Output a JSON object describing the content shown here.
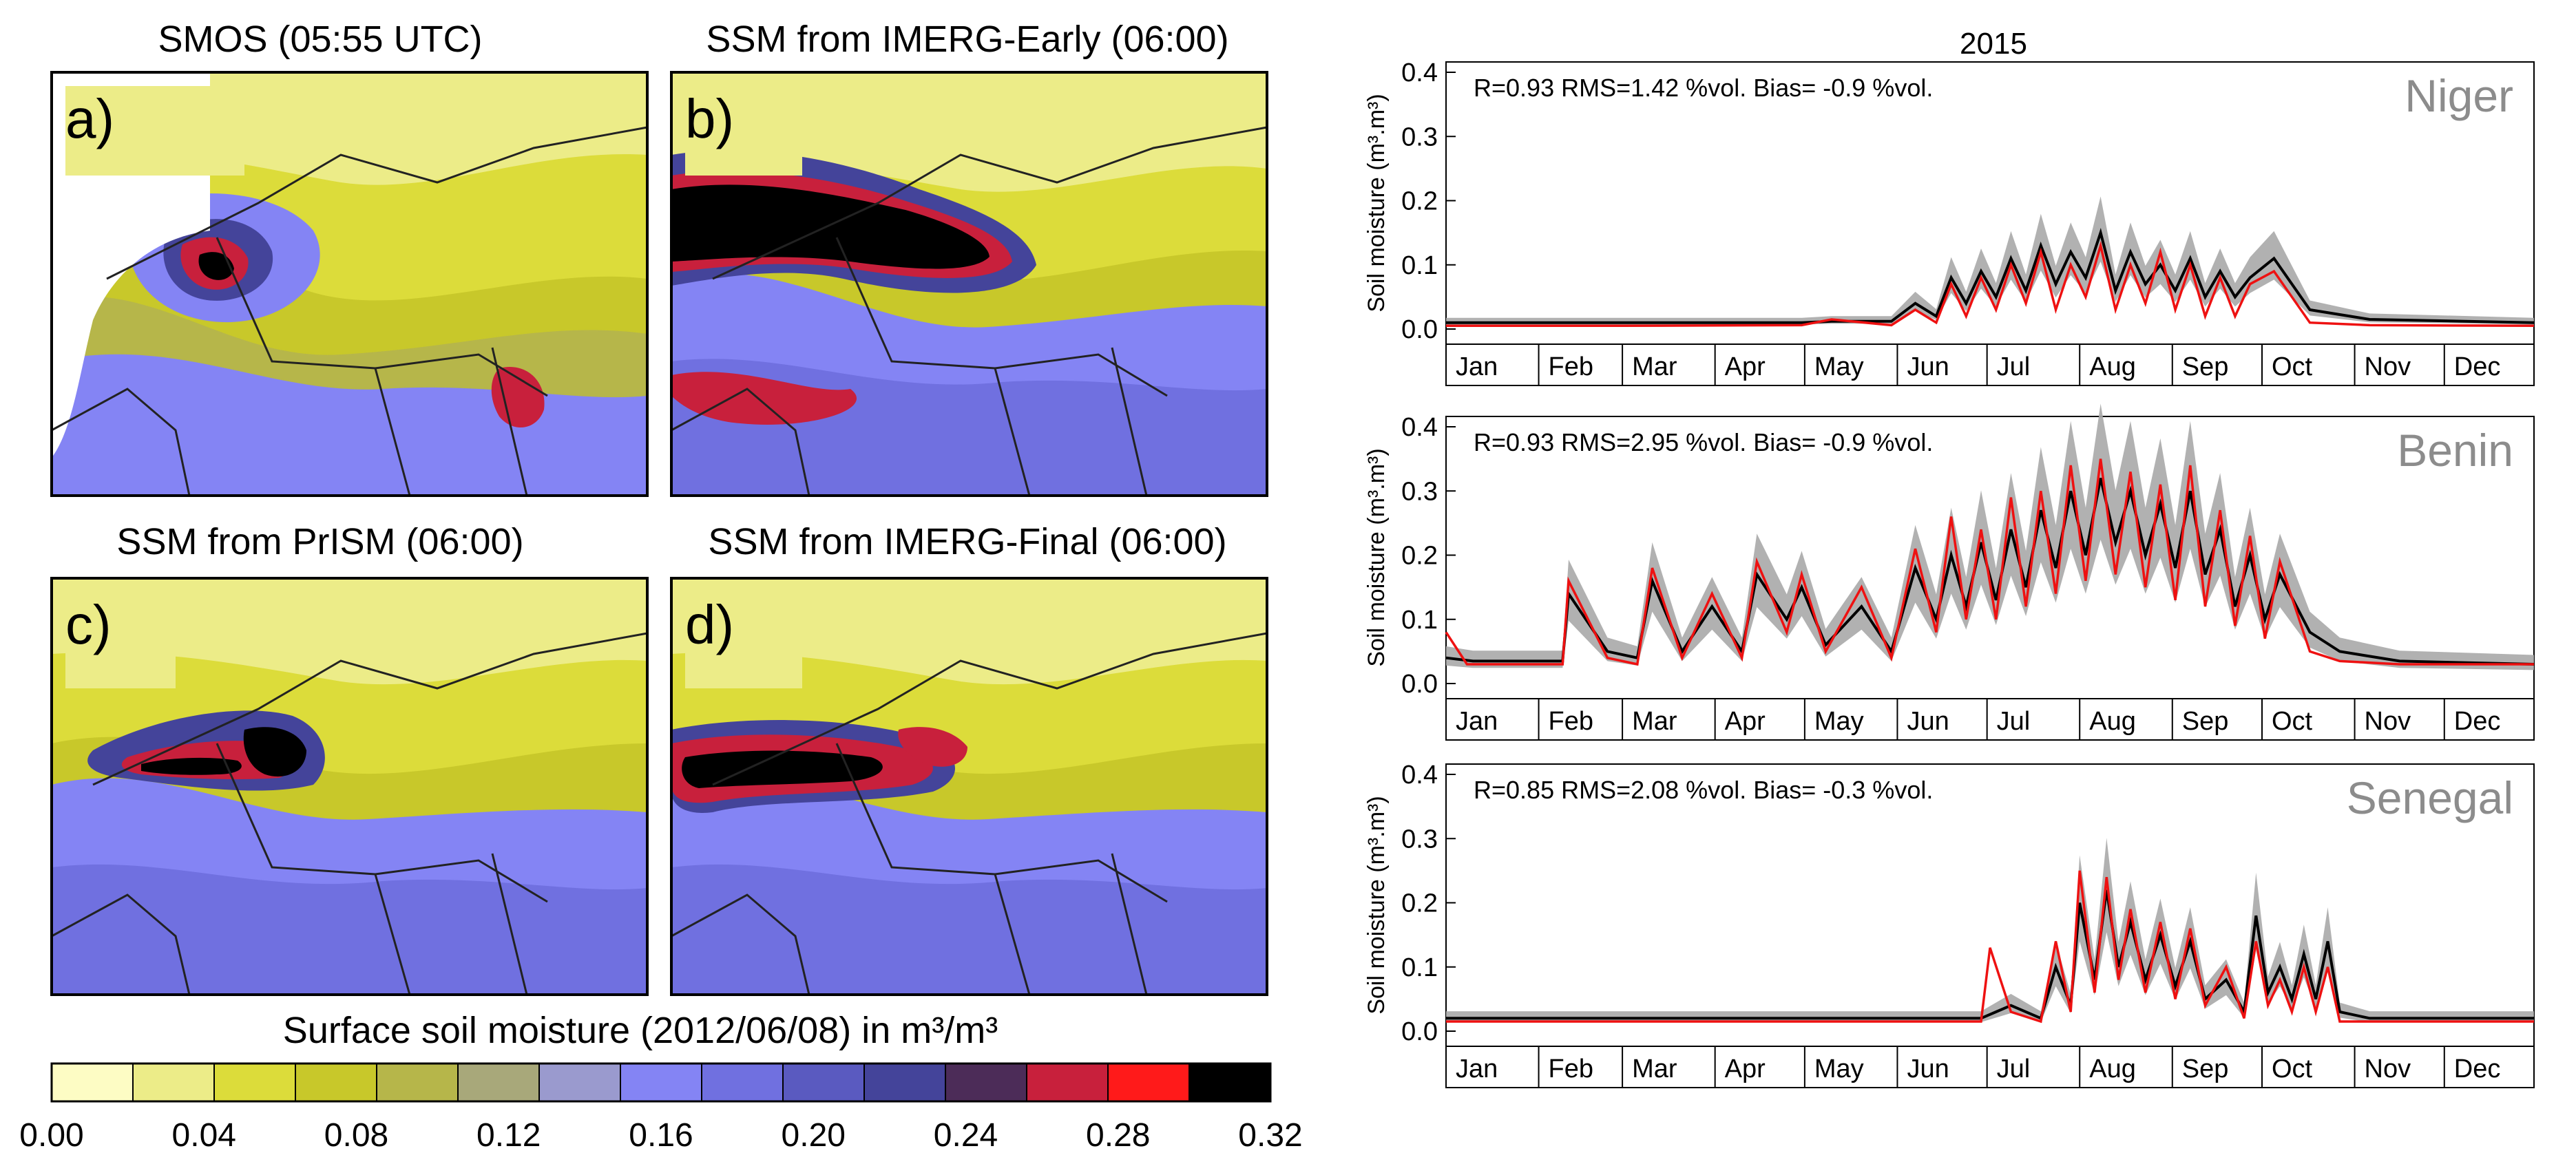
{
  "maps": {
    "panels": [
      {
        "title": "SMOS (05:55 UTC)",
        "letter": "a)"
      },
      {
        "title": "SSM from IMERG-Early (06:00)",
        "letter": "b)"
      },
      {
        "title": "SSM from PrISM (06:00)",
        "letter": "c)"
      },
      {
        "title": "SSM from IMERG-Final (06:00)",
        "letter": "d)"
      }
    ],
    "colorbar": {
      "title": "Surface soil moisture (2012/06/08) in m³/m³",
      "tick_labels": [
        "0.00",
        "0.04",
        "0.08",
        "0.12",
        "0.16",
        "0.20",
        "0.24",
        "0.28",
        "0.32"
      ],
      "colors": [
        "#fdfcc4",
        "#ecec88",
        "#dcdc3a",
        "#c8c82a",
        "#b6b64a",
        "#a8a87a",
        "#9a9ace",
        "#8484f4",
        "#7070e0",
        "#5a5ac0",
        "#44449a",
        "#4c2c58",
        "#c8203c",
        "#ff1a1a",
        "#000000"
      ]
    }
  },
  "chart_data": [
    {
      "type": "line",
      "panel_title": "2015",
      "site": "Niger",
      "stats": "R=0.93 RMS=1.42 %vol. Bias= -0.9 %vol.",
      "ylabel": "Soil moisture (m³.m³)",
      "ylim": [
        0,
        0.4
      ],
      "yticks": [
        "0.0",
        "0.1",
        "0.2",
        "0.3",
        "0.4"
      ],
      "months": [
        "Jan",
        "Feb",
        "Mar",
        "Apr",
        "May",
        "Jun",
        "Jul",
        "Aug",
        "Sep",
        "Oct",
        "Nov",
        "Dec"
      ],
      "series": [
        {
          "color": "#000000",
          "x": [
            1,
            60,
            120,
            130,
            150,
            158,
            165,
            170,
            175,
            180,
            185,
            190,
            195,
            200,
            205,
            210,
            215,
            220,
            225,
            230,
            235,
            240,
            245,
            250,
            255,
            260,
            265,
            270,
            278,
            290,
            310,
            365
          ],
          "y": [
            0.01,
            0.01,
            0.01,
            0.012,
            0.012,
            0.04,
            0.02,
            0.08,
            0.04,
            0.09,
            0.05,
            0.11,
            0.06,
            0.13,
            0.07,
            0.12,
            0.08,
            0.15,
            0.06,
            0.12,
            0.07,
            0.1,
            0.06,
            0.11,
            0.05,
            0.09,
            0.05,
            0.08,
            0.11,
            0.03,
            0.015,
            0.01
          ]
        },
        {
          "color": "#ee1111",
          "x": [
            1,
            60,
            120,
            130,
            150,
            158,
            165,
            170,
            175,
            180,
            185,
            190,
            195,
            200,
            205,
            210,
            215,
            220,
            225,
            230,
            235,
            240,
            245,
            250,
            255,
            260,
            265,
            270,
            278,
            290,
            310,
            365
          ],
          "y": [
            0.005,
            0.005,
            0.006,
            0.015,
            0.006,
            0.03,
            0.01,
            0.07,
            0.02,
            0.08,
            0.03,
            0.1,
            0.04,
            0.12,
            0.03,
            0.1,
            0.05,
            0.13,
            0.03,
            0.1,
            0.04,
            0.12,
            0.03,
            0.1,
            0.02,
            0.08,
            0.02,
            0.07,
            0.09,
            0.01,
            0.006,
            0.005
          ]
        }
      ]
    },
    {
      "type": "line",
      "site": "Benin",
      "stats": "R=0.93 RMS=2.95 %vol. Bias= -0.9 %vol.",
      "ylabel": "Soil moisture (m³.m³)",
      "ylim": [
        0,
        0.4
      ],
      "yticks": [
        "0.0",
        "0.1",
        "0.2",
        "0.3",
        "0.4"
      ],
      "months": [
        "Jan",
        "Feb",
        "Mar",
        "Apr",
        "May",
        "Jun",
        "Jul",
        "Aug",
        "Sep",
        "Oct",
        "Nov",
        "Dec"
      ],
      "series": [
        {
          "color": "#000000",
          "x": [
            1,
            10,
            40,
            42,
            55,
            65,
            70,
            80,
            90,
            100,
            105,
            115,
            120,
            128,
            140,
            150,
            158,
            165,
            170,
            175,
            180,
            185,
            190,
            195,
            200,
            205,
            210,
            215,
            220,
            225,
            230,
            235,
            240,
            245,
            250,
            255,
            260,
            265,
            270,
            275,
            280,
            290,
            300,
            320,
            365
          ],
          "y": [
            0.04,
            0.035,
            0.035,
            0.14,
            0.05,
            0.04,
            0.16,
            0.05,
            0.12,
            0.05,
            0.17,
            0.1,
            0.15,
            0.06,
            0.12,
            0.05,
            0.18,
            0.1,
            0.2,
            0.12,
            0.22,
            0.13,
            0.24,
            0.15,
            0.27,
            0.18,
            0.3,
            0.2,
            0.32,
            0.22,
            0.3,
            0.2,
            0.28,
            0.18,
            0.3,
            0.17,
            0.24,
            0.12,
            0.2,
            0.1,
            0.17,
            0.08,
            0.05,
            0.035,
            0.03
          ]
        },
        {
          "color": "#ee1111",
          "x": [
            1,
            8,
            40,
            42,
            55,
            65,
            70,
            80,
            90,
            100,
            105,
            115,
            120,
            128,
            140,
            150,
            158,
            165,
            170,
            175,
            180,
            185,
            190,
            195,
            200,
            205,
            210,
            215,
            220,
            225,
            230,
            235,
            240,
            245,
            250,
            255,
            260,
            265,
            270,
            275,
            280,
            290,
            300,
            320,
            365
          ],
          "y": [
            0.08,
            0.03,
            0.03,
            0.16,
            0.04,
            0.03,
            0.18,
            0.04,
            0.14,
            0.04,
            0.19,
            0.08,
            0.17,
            0.05,
            0.15,
            0.04,
            0.21,
            0.08,
            0.26,
            0.1,
            0.24,
            0.1,
            0.29,
            0.12,
            0.3,
            0.14,
            0.34,
            0.16,
            0.35,
            0.17,
            0.33,
            0.15,
            0.31,
            0.13,
            0.34,
            0.12,
            0.27,
            0.09,
            0.23,
            0.07,
            0.19,
            0.05,
            0.035,
            0.03,
            0.03
          ]
        }
      ]
    },
    {
      "type": "line",
      "site": "Senegal",
      "stats": "R=0.85 RMS=2.08 %vol. Bias= -0.3 %vol.",
      "ylabel": "Soil moisture (m³.m³)",
      "ylim": [
        0,
        0.4
      ],
      "yticks": [
        "0.0",
        "0.1",
        "0.2",
        "0.3",
        "0.4"
      ],
      "months": [
        "Jan",
        "Feb",
        "Mar",
        "Apr",
        "May",
        "Jun",
        "Jul",
        "Aug",
        "Sep",
        "Oct",
        "Nov",
        "Dec"
      ],
      "series": [
        {
          "color": "#000000",
          "x": [
            1,
            180,
            185,
            190,
            200,
            205,
            210,
            213,
            218,
            222,
            226,
            230,
            235,
            240,
            245,
            250,
            255,
            262,
            268,
            272,
            276,
            280,
            284,
            288,
            292,
            296,
            300,
            310,
            365
          ],
          "y": [
            0.02,
            0.02,
            0.03,
            0.04,
            0.02,
            0.1,
            0.04,
            0.2,
            0.08,
            0.22,
            0.1,
            0.17,
            0.08,
            0.15,
            0.07,
            0.14,
            0.05,
            0.08,
            0.03,
            0.18,
            0.06,
            0.1,
            0.05,
            0.12,
            0.05,
            0.14,
            0.03,
            0.02,
            0.02
          ]
        },
        {
          "color": "#ee1111",
          "x": [
            1,
            180,
            183,
            190,
            200,
            205,
            210,
            213,
            218,
            222,
            226,
            230,
            235,
            240,
            245,
            250,
            255,
            262,
            268,
            272,
            276,
            280,
            284,
            288,
            292,
            296,
            300,
            310,
            365
          ],
          "y": [
            0.015,
            0.015,
            0.13,
            0.03,
            0.015,
            0.14,
            0.03,
            0.25,
            0.06,
            0.24,
            0.08,
            0.19,
            0.06,
            0.17,
            0.05,
            0.16,
            0.04,
            0.1,
            0.02,
            0.14,
            0.04,
            0.08,
            0.03,
            0.1,
            0.03,
            0.1,
            0.015,
            0.015,
            0.015
          ]
        }
      ]
    }
  ]
}
